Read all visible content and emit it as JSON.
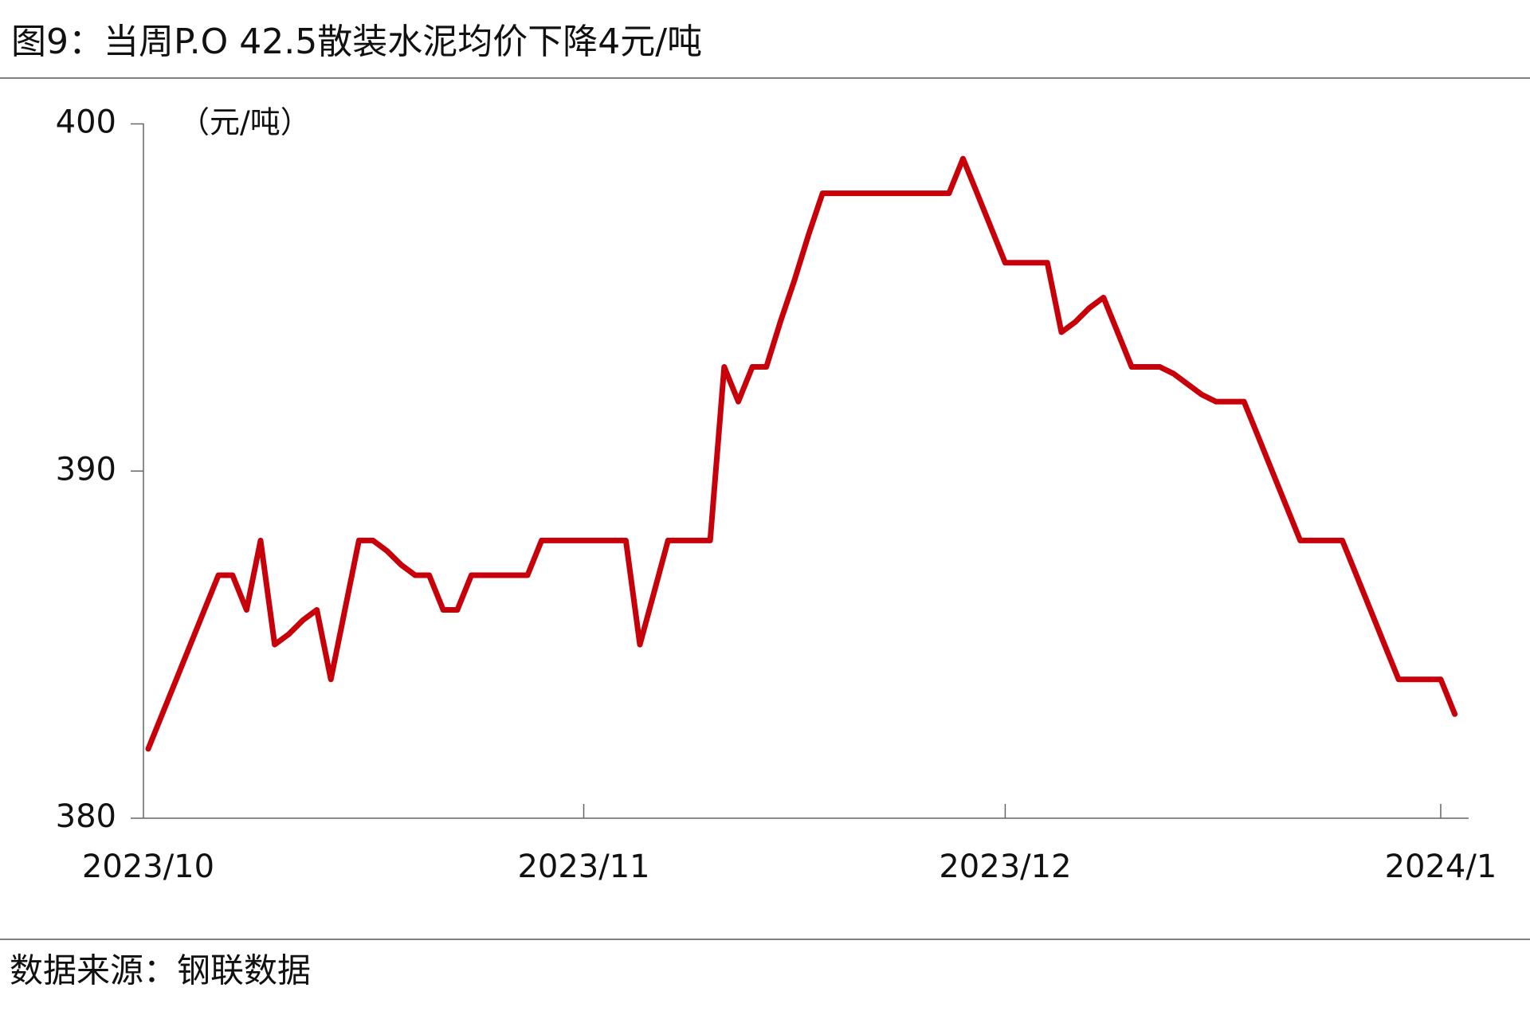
{
  "chart_data": {
    "type": "line",
    "title": "图9：当周P.O 42.5散装水泥均价下降4元/吨",
    "y_label": "（元/吨）",
    "source": "数据来源：钢联数据",
    "categories": [
      "2023/10",
      null,
      null,
      null,
      null,
      null,
      null,
      null,
      null,
      null,
      null,
      null,
      null,
      null,
      null,
      null,
      null,
      null,
      null,
      null,
      null,
      null,
      null,
      null,
      null,
      null,
      null,
      null,
      null,
      null,
      null,
      "2023/11",
      null,
      null,
      null,
      null,
      null,
      null,
      null,
      null,
      null,
      null,
      null,
      null,
      null,
      null,
      null,
      null,
      null,
      null,
      null,
      null,
      null,
      null,
      null,
      null,
      null,
      null,
      null,
      null,
      null,
      "2023/12",
      null,
      null,
      null,
      null,
      null,
      null,
      null,
      null,
      null,
      null,
      null,
      null,
      null,
      null,
      null,
      null,
      null,
      null,
      null,
      null,
      null,
      null,
      null,
      null,
      null,
      null,
      null,
      null,
      null,
      null,
      "2024/1",
      null
    ],
    "values": [
      382,
      383,
      384,
      385,
      386,
      387,
      387,
      386,
      388,
      385,
      385.3,
      385.7,
      386,
      384,
      386,
      388,
      388,
      387.7,
      387.3,
      387,
      387,
      386,
      386,
      387,
      387,
      387,
      387,
      387,
      388,
      388,
      388,
      388,
      388,
      388,
      388,
      385,
      386.5,
      388,
      388,
      388,
      388,
      393,
      392,
      393,
      393,
      394.3,
      395.5,
      396.8,
      398,
      398,
      398,
      398,
      398,
      398,
      398,
      398,
      398,
      398,
      399,
      398,
      397,
      396,
      396,
      396,
      396,
      394,
      394.3,
      394.7,
      395,
      394,
      393,
      393,
      393,
      392.8,
      392.5,
      392.2,
      392,
      392,
      392,
      391,
      390,
      389,
      388,
      388,
      388,
      388,
      387,
      386,
      385,
      384,
      384,
      384,
      384,
      383
    ],
    "color": "#c8000a",
    "ylim": [
      380,
      400
    ],
    "yticks": [
      380,
      390,
      400
    ]
  }
}
